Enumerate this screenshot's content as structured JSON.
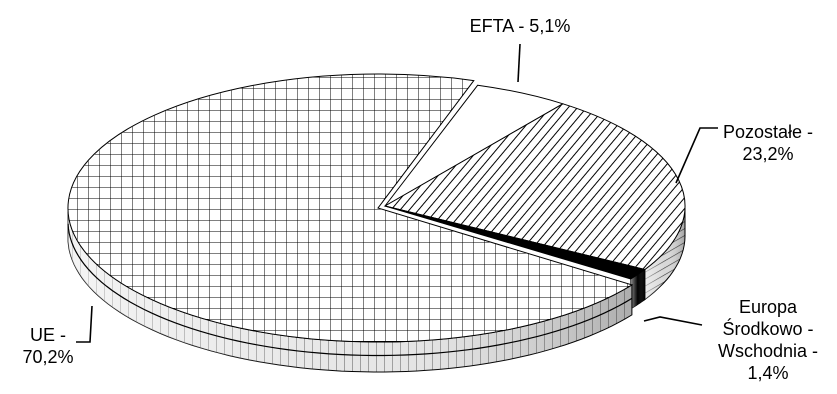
{
  "chart_data": {
    "type": "pie",
    "style": "3d-exploded",
    "colors": {
      "fill": "#ffffff",
      "stroke": "#000000",
      "dark": "#000000"
    },
    "slices": [
      {
        "label_lines": [
          "EFTA - 5,1%"
        ],
        "value": 5.1,
        "pattern": "white"
      },
      {
        "label_lines": [
          "Pozostałe -",
          "23,2%"
        ],
        "value": 23.2,
        "pattern": "diagonal-hatch"
      },
      {
        "label_lines": [
          "Europa",
          "Środkowo -",
          "Wschodnia -",
          "1,4%"
        ],
        "value": 1.4,
        "pattern": "solid-black"
      },
      {
        "label_lines": [
          "UE -",
          "70,2%"
        ],
        "value": 70.2,
        "pattern": "grid"
      }
    ]
  }
}
